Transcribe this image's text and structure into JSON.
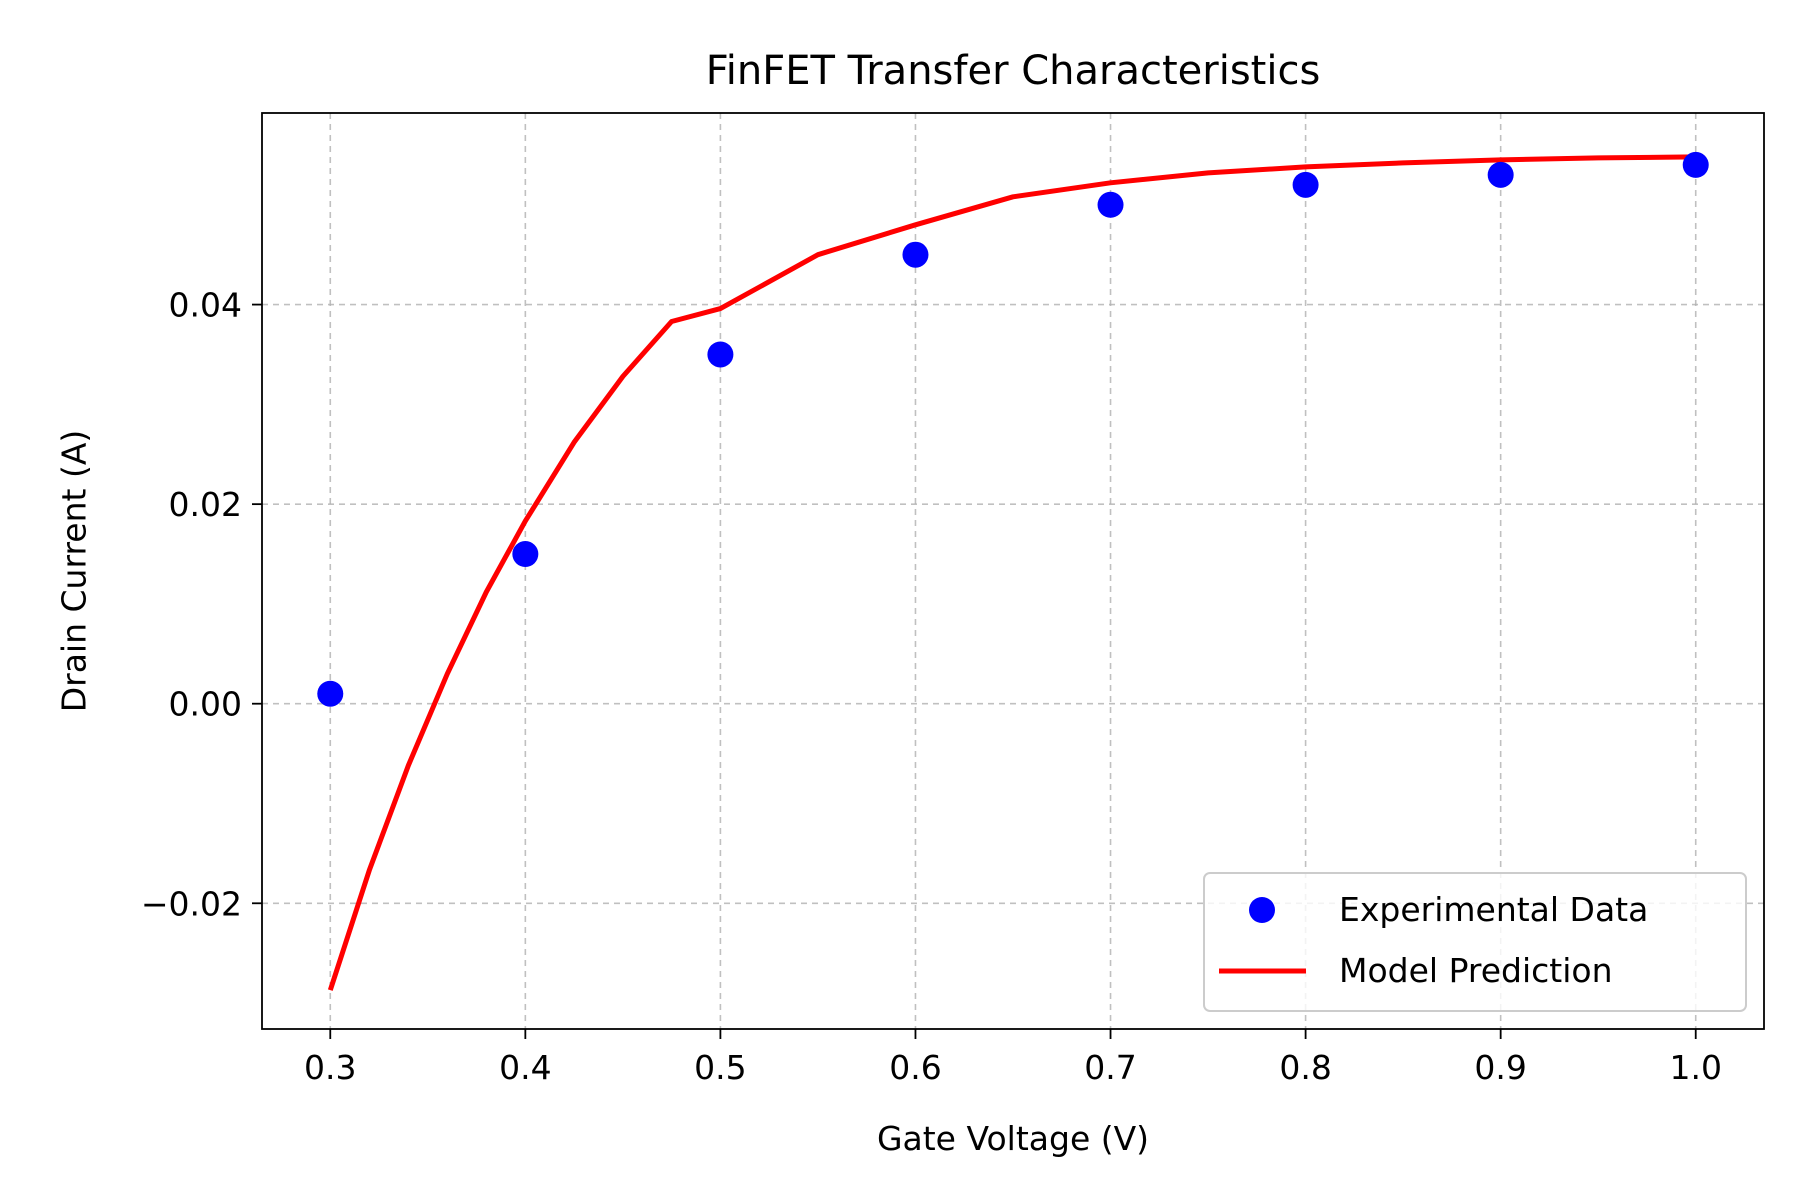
{
  "chart_data": {
    "type": "scatter",
    "title": "FinFET Transfer Characteristics",
    "xlabel": "Gate Voltage (V)",
    "ylabel": "Drain Current (A)",
    "xlim": [
      0.265,
      1.035
    ],
    "ylim": [
      -0.0326,
      0.0592
    ],
    "xticks": [
      0.3,
      0.4,
      0.5,
      0.6,
      0.7,
      0.8,
      0.9,
      1.0
    ],
    "xtick_labels": [
      "0.3",
      "0.4",
      "0.5",
      "0.6",
      "0.7",
      "0.8",
      "0.9",
      "1.0"
    ],
    "yticks": [
      -0.02,
      0.0,
      0.02,
      0.04
    ],
    "ytick_labels": [
      "−0.02",
      "0.00",
      "0.02",
      "0.04"
    ],
    "grid": true,
    "legend_position": "lower-right",
    "series": [
      {
        "name": "Experimental Data",
        "kind": "scatter",
        "color": "#0000ff",
        "x": [
          0.3,
          0.4,
          0.5,
          0.6,
          0.7,
          0.8,
          0.9,
          1.0
        ],
        "y": [
          0.001,
          0.015,
          0.035,
          0.045,
          0.05,
          0.052,
          0.053,
          0.054
        ]
      },
      {
        "name": "Model Prediction",
        "kind": "line",
        "color": "#ff0000",
        "x": [
          0.3,
          0.32,
          0.34,
          0.36,
          0.38,
          0.4,
          0.425,
          0.45,
          0.475,
          0.5,
          0.55,
          0.6,
          0.65,
          0.7,
          0.75,
          0.8,
          0.85,
          0.9,
          0.95,
          1.0
        ],
        "y": [
          -0.0287,
          -0.0167,
          -0.0062,
          0.003,
          0.0112,
          0.0183,
          0.0262,
          0.0328,
          0.0383,
          0.0396,
          0.045,
          0.048,
          0.0508,
          0.0522,
          0.0532,
          0.0538,
          0.0542,
          0.0545,
          0.0547,
          0.0548
        ]
      }
    ]
  }
}
